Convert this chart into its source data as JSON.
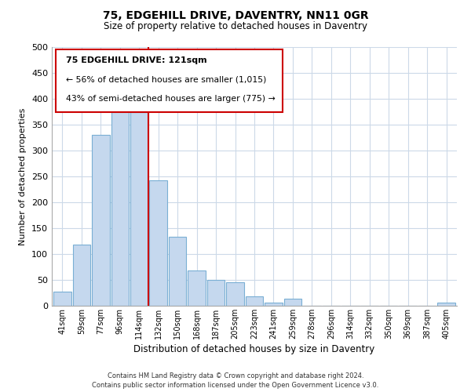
{
  "title": "75, EDGEHILL DRIVE, DAVENTRY, NN11 0GR",
  "subtitle": "Size of property relative to detached houses in Daventry",
  "xlabel": "Distribution of detached houses by size in Daventry",
  "ylabel": "Number of detached properties",
  "bar_labels": [
    "41sqm",
    "59sqm",
    "77sqm",
    "96sqm",
    "114sqm",
    "132sqm",
    "150sqm",
    "168sqm",
    "187sqm",
    "205sqm",
    "223sqm",
    "241sqm",
    "259sqm",
    "278sqm",
    "296sqm",
    "314sqm",
    "332sqm",
    "350sqm",
    "369sqm",
    "387sqm",
    "405sqm"
  ],
  "bar_values": [
    28,
    118,
    330,
    388,
    375,
    242,
    133,
    68,
    50,
    46,
    18,
    6,
    13,
    0,
    0,
    0,
    0,
    0,
    0,
    0,
    6
  ],
  "bar_color": "#c5d8ee",
  "bar_edge_color": "#7aafd4",
  "highlight_bar_index": 4,
  "highlight_color": "#cc0000",
  "ylim": [
    0,
    500
  ],
  "yticks": [
    0,
    50,
    100,
    150,
    200,
    250,
    300,
    350,
    400,
    450,
    500
  ],
  "annotation_title": "75 EDGEHILL DRIVE: 121sqm",
  "annotation_line1": "← 56% of detached houses are smaller (1,015)",
  "annotation_line2": "43% of semi-detached houses are larger (775) →",
  "annotation_box_color": "#ffffff",
  "annotation_box_edge": "#cc0000",
  "footer_line1": "Contains HM Land Registry data © Crown copyright and database right 2024.",
  "footer_line2": "Contains public sector information licensed under the Open Government Licence v3.0.",
  "background_color": "#ffffff",
  "grid_color": "#ccd9e8"
}
